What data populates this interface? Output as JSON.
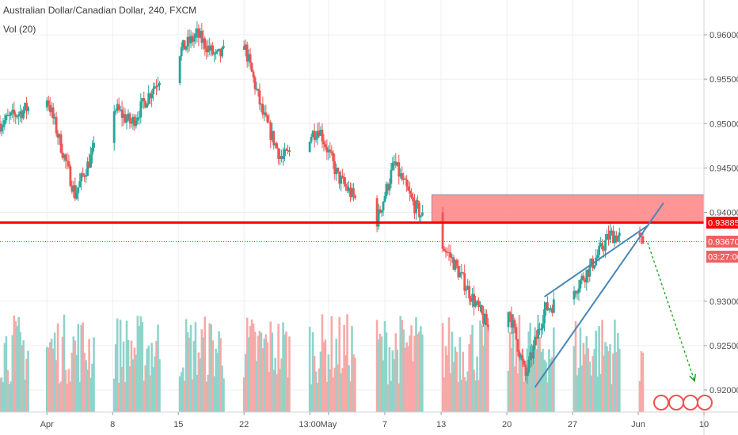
{
  "header": {
    "title": "Australian Dollar/Canadian Dollar, 240, FXCM",
    "volume_label": "Vol (20)"
  },
  "price_axis": {
    "ticks": [
      "0.96000",
      "0.95500",
      "0.95000",
      "0.94500",
      "0.94000",
      "0.93000",
      "0.92500",
      "0.92000"
    ]
  },
  "time_axis": {
    "ticks": [
      "Apr",
      "8",
      "15",
      "22",
      "13:00",
      "May",
      "7",
      "13",
      "20",
      "27",
      "Jun",
      "10"
    ]
  },
  "markers": {
    "resistance_price": "0.93885",
    "last_price": "0.93670",
    "countdown": "03:27:00"
  },
  "colors": {
    "bull": "#26a69a",
    "bear": "#ef5350",
    "vol_bull": "#8fd4cb",
    "vol_bear": "#f7a9a7",
    "zone_fill": "#ff8a8a",
    "resistance": "#ff0000",
    "channel": "#4a86b8",
    "projection": "#12a012"
  },
  "chart_data": {
    "type": "candlestick",
    "symbol": "AUD/CAD",
    "interval": "240",
    "ylim": [
      0.9188,
      0.9643
    ],
    "price_path": [
      {
        "date": "Mar 27",
        "price": 0.95
      },
      {
        "date": "Apr 1",
        "price": 0.953
      },
      {
        "date": "Apr 4",
        "price": 0.942
      },
      {
        "date": "Apr 8",
        "price": 0.952
      },
      {
        "date": "Apr 10",
        "price": 0.95
      },
      {
        "date": "Apr 14",
        "price": 0.957
      },
      {
        "date": "Apr 17",
        "price": 0.96
      },
      {
        "date": "Apr 19",
        "price": 0.9575
      },
      {
        "date": "Apr 22",
        "price": 0.959
      },
      {
        "date": "Apr 24",
        "price": 0.951
      },
      {
        "date": "Apr 26",
        "price": 0.946
      },
      {
        "date": "Apr 30",
        "price": 0.9495
      },
      {
        "date": "May 2",
        "price": 0.944
      },
      {
        "date": "May 6",
        "price": 0.9385
      },
      {
        "date": "May 8",
        "price": 0.9455
      },
      {
        "date": "May 10",
        "price": 0.941
      },
      {
        "date": "May 14",
        "price": 0.935
      },
      {
        "date": "May 16",
        "price": 0.931
      },
      {
        "date": "May 18",
        "price": 0.927
      },
      {
        "date": "May 20",
        "price": 0.93
      },
      {
        "date": "May 22",
        "price": 0.9215
      },
      {
        "date": "May 24",
        "price": 0.929
      },
      {
        "date": "May 27",
        "price": 0.931
      },
      {
        "date": "May 29",
        "price": 0.934
      },
      {
        "date": "May 31",
        "price": 0.9375
      },
      {
        "date": "Jun 3",
        "price": 0.9367
      }
    ],
    "resistance_zone": [
      0.9388,
      0.942
    ],
    "resistance_line": 0.93885,
    "current_price": 0.9367,
    "rising_wedge": {
      "upper": [
        {
          "date": "May 24",
          "price": 0.9305
        },
        {
          "date": "Jun 4",
          "price": 0.9385
        }
      ],
      "lower": [
        {
          "date": "May 23",
          "price": 0.9203
        },
        {
          "date": "Jun 4",
          "price": 0.9385
        }
      ]
    },
    "projection": [
      {
        "date": "Jun 4",
        "price": 0.9366
      },
      {
        "date": "Jun 9",
        "price": 0.921
      }
    ]
  }
}
